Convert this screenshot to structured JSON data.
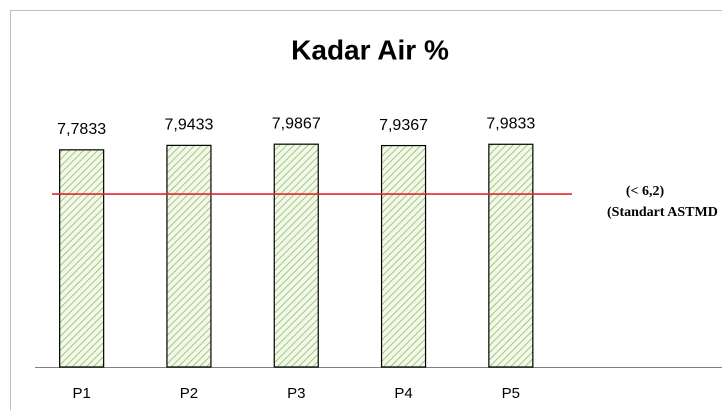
{
  "chart_data": {
    "type": "bar",
    "title": "Kadar Air  %",
    "categories": [
      "P1",
      "P2",
      "P3",
      "P4",
      "P5"
    ],
    "values": [
      7.7833,
      7.9433,
      7.9867,
      7.9367,
      7.9833
    ],
    "value_labels": [
      "7,7833",
      "7,9433",
      "7,9867",
      "7,9367",
      "7,9833"
    ],
    "color": "#8fbf5a",
    "ylim": [
      0,
      10
    ],
    "reference_line": {
      "value": 6.2,
      "color": "#e8252b",
      "label": [
        "(< 6,2)",
        "(Standart ASTMD"
      ]
    }
  }
}
